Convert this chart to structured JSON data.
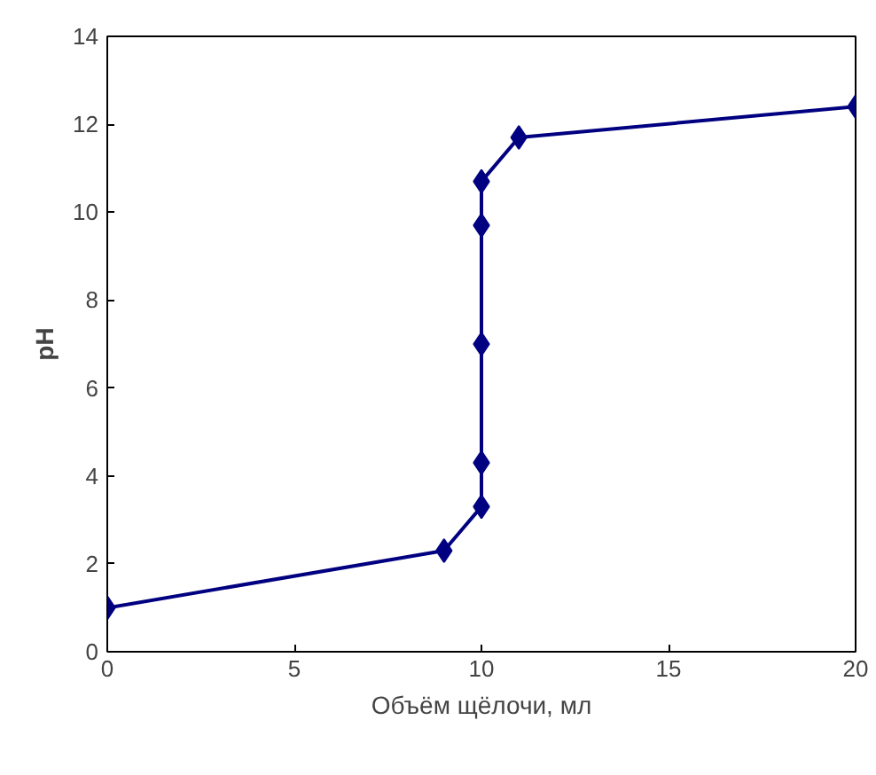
{
  "chart_data": {
    "type": "line",
    "xlabel": "Объём щёлочи, мл",
    "ylabel": "pH",
    "x": [
      0,
      9,
      10,
      10,
      10,
      10,
      10,
      11,
      20
    ],
    "series": [
      {
        "color": "#000080",
        "values": [
          1.0,
          2.3,
          3.3,
          4.3,
          7.0,
          9.7,
          10.7,
          11.7,
          12.4
        ]
      }
    ],
    "xlim": [
      0,
      20
    ],
    "xticks": [
      0,
      5,
      10,
      15,
      20
    ],
    "ylim": [
      0,
      14
    ],
    "yticks": [
      0,
      2,
      4,
      6,
      8,
      10,
      12,
      14
    ],
    "grid": false,
    "marker": "diamond",
    "line_style": "solid"
  }
}
